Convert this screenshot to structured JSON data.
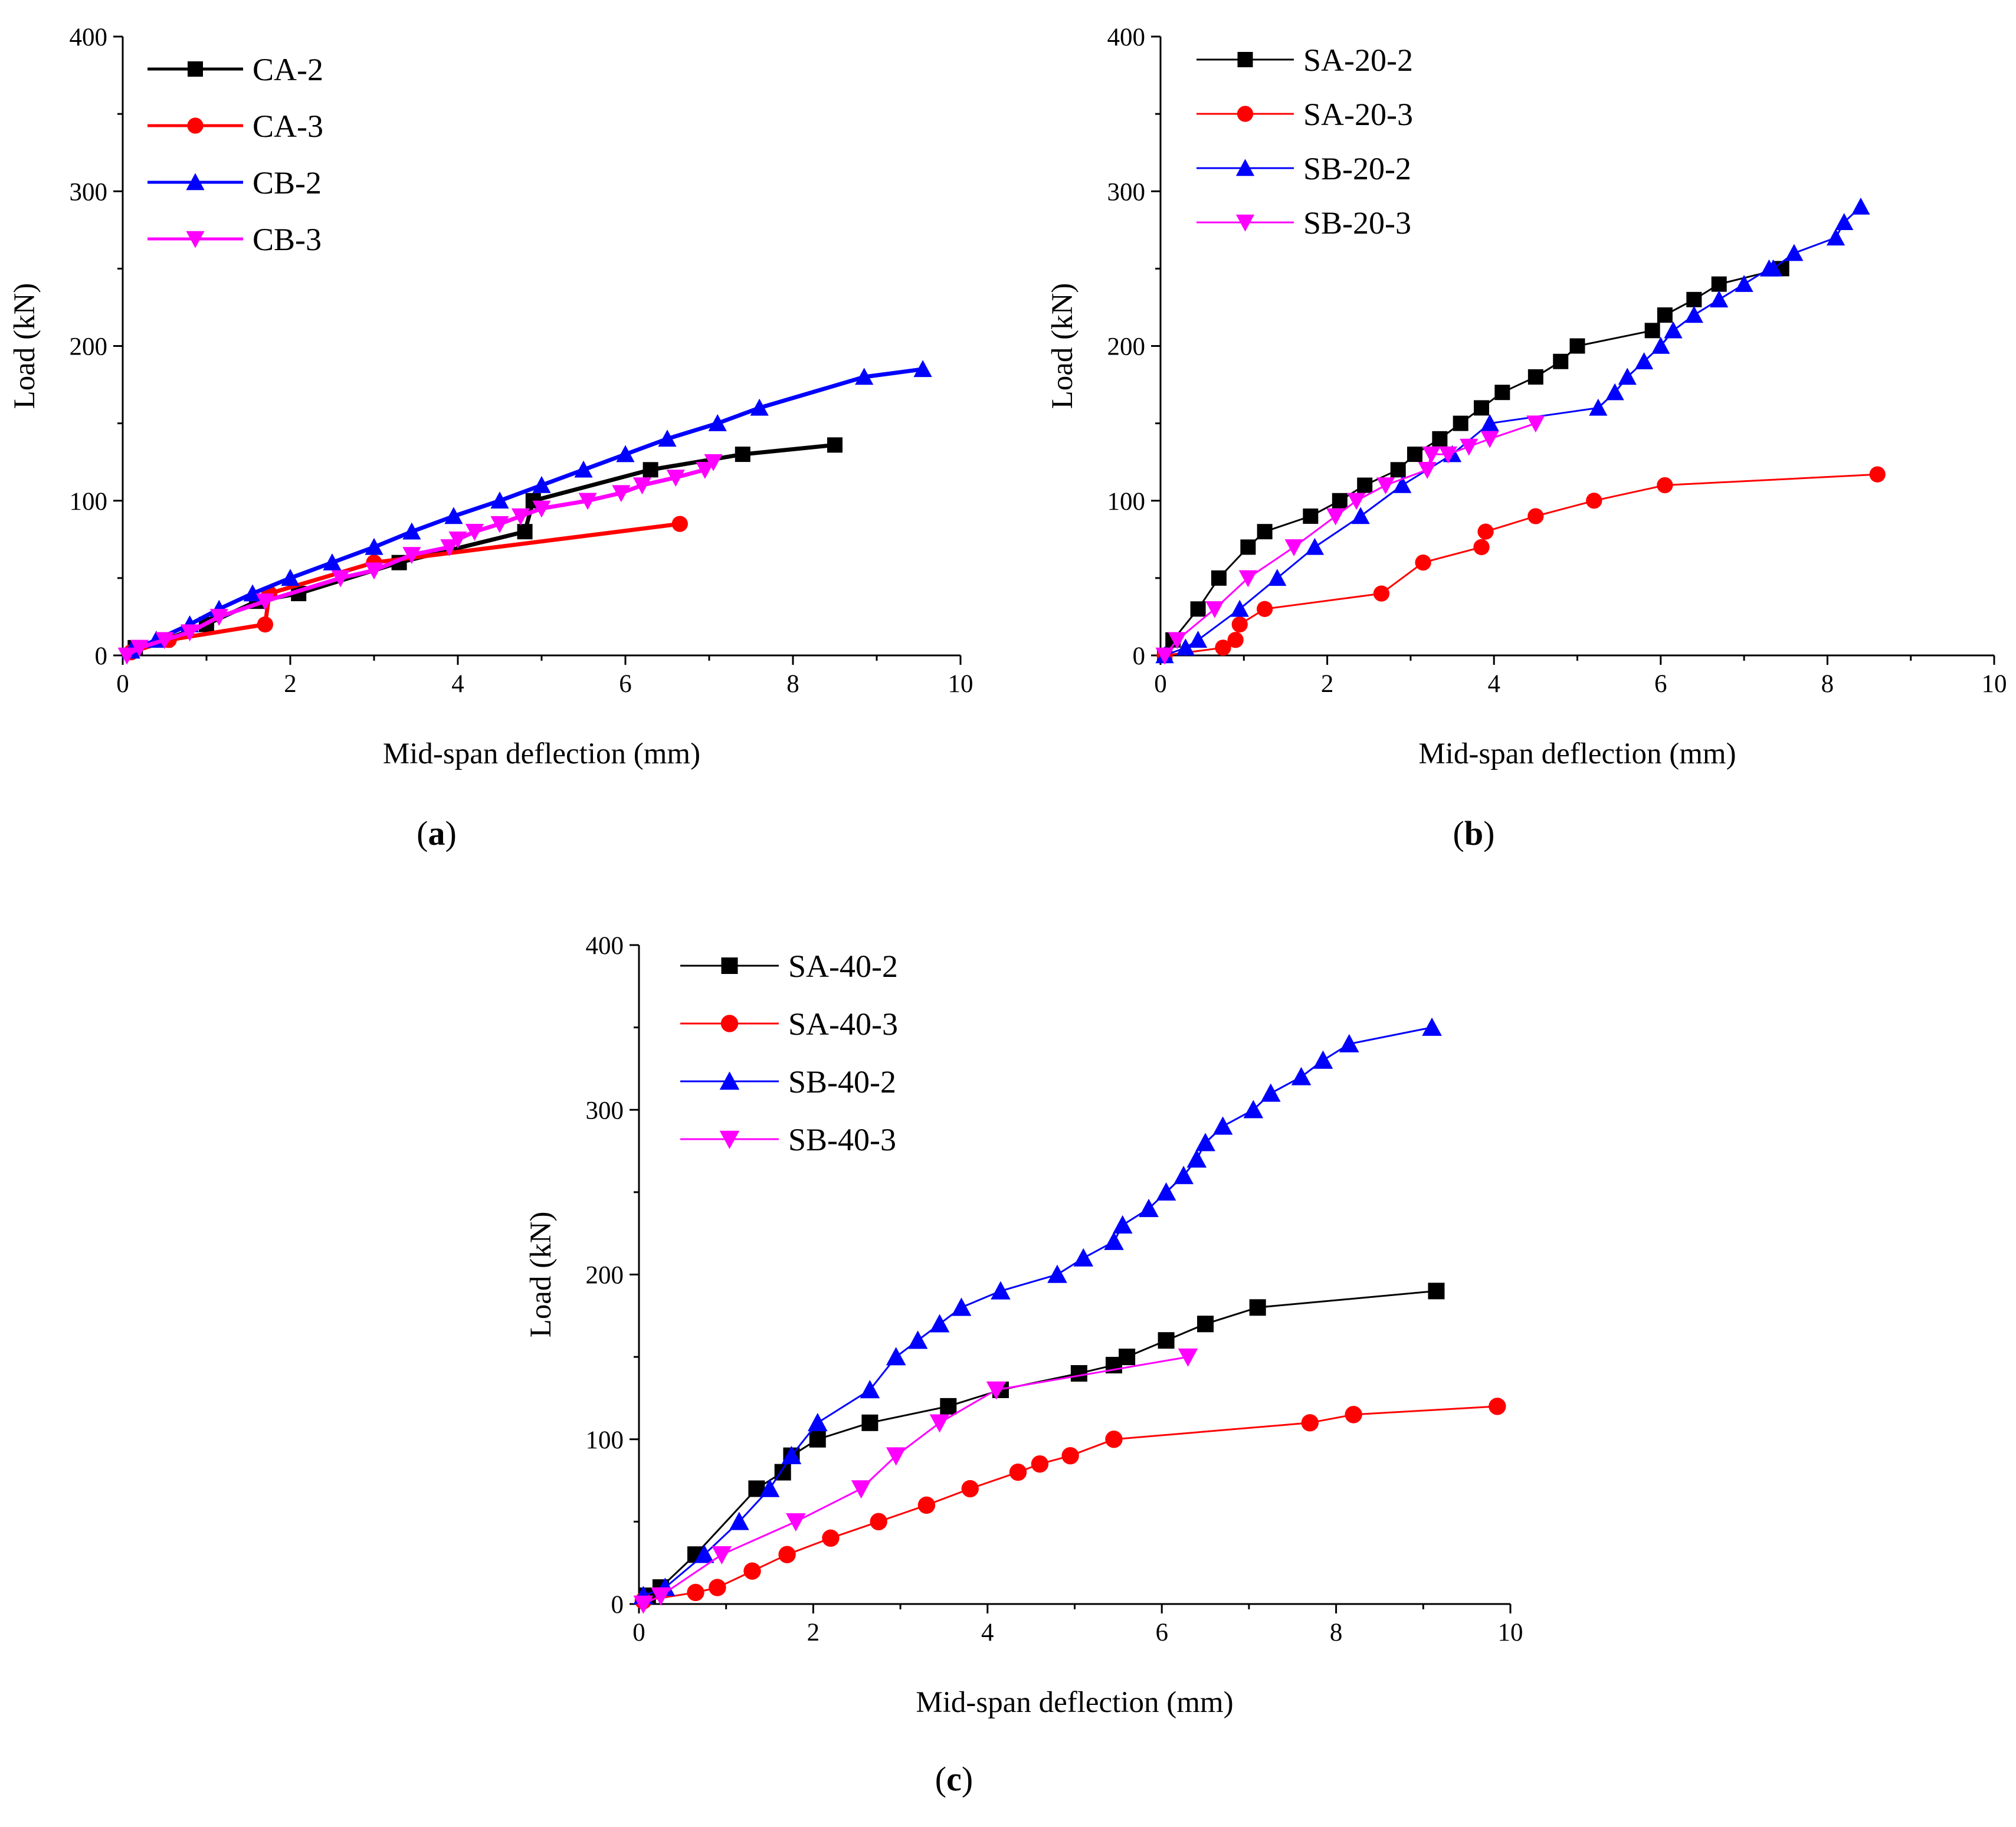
{
  "chart_data": [
    {
      "type": "line",
      "panel_label": "(a)",
      "xlabel": "Mid-span deflection (mm)",
      "ylabel": "Load (kN)",
      "xlim": [
        0,
        10
      ],
      "ylim": [
        0,
        400
      ],
      "xticks": [
        0,
        2,
        4,
        6,
        8,
        10
      ],
      "yticks": [
        0,
        100,
        200,
        300,
        400
      ],
      "legend_position": "top-left",
      "series": [
        {
          "name": "CA-2",
          "color": "#000000",
          "marker": "square",
          "x": [
            0.15,
            0.5,
            1.0,
            1.6,
            2.1,
            3.3,
            4.8,
            4.9,
            6.3,
            7.4,
            8.5
          ],
          "y": [
            5,
            10,
            20,
            35,
            40,
            60,
            80,
            100,
            120,
            130,
            136
          ]
        },
        {
          "name": "CA-3",
          "color": "#ff0000",
          "marker": "circle",
          "x": [
            0.1,
            0.55,
            1.7,
            1.75,
            3.0,
            6.65
          ],
          "y": [
            2,
            10,
            20,
            40,
            60,
            85
          ]
        },
        {
          "name": "CB-2",
          "color": "#0000ff",
          "marker": "triangle-up",
          "x": [
            0.1,
            0.4,
            0.8,
            1.15,
            1.55,
            2.0,
            2.5,
            3.0,
            3.45,
            3.95,
            4.5,
            5.0,
            5.5,
            6.0,
            6.5,
            7.1,
            7.6,
            8.85,
            9.55
          ],
          "y": [
            3,
            10,
            20,
            30,
            40,
            50,
            60,
            70,
            80,
            90,
            100,
            110,
            120,
            130,
            140,
            150,
            160,
            180,
            185
          ]
        },
        {
          "name": "CB-3",
          "color": "#ff00ff",
          "marker": "triangle-down",
          "x": [
            0.05,
            0.2,
            0.5,
            0.8,
            1.15,
            1.7,
            2.6,
            3.0,
            3.45,
            3.9,
            4.0,
            4.2,
            4.5,
            4.75,
            5.0,
            5.55,
            5.95,
            6.2,
            6.6,
            6.95,
            7.05
          ],
          "y": [
            0,
            5,
            10,
            15,
            25,
            35,
            50,
            55,
            65,
            70,
            75,
            80,
            85,
            90,
            95,
            100,
            105,
            110,
            115,
            120,
            125
          ]
        }
      ]
    },
    {
      "type": "line",
      "panel_label": "(b)",
      "xlabel": "Mid-span deflection (mm)",
      "ylabel": "Load (kN)",
      "xlim": [
        0,
        10
      ],
      "ylim": [
        0,
        400
      ],
      "xticks": [
        0,
        2,
        4,
        6,
        8,
        10
      ],
      "yticks": [
        0,
        100,
        200,
        300,
        400
      ],
      "legend_position": "top-left",
      "series": [
        {
          "name": "SA-20-2",
          "color": "#000000",
          "marker": "square",
          "x": [
            0.05,
            0.15,
            0.45,
            0.7,
            1.05,
            1.25,
            1.8,
            2.15,
            2.45,
            2.85,
            3.05,
            3.35,
            3.6,
            3.85,
            4.1,
            4.5,
            4.8,
            5.0,
            5.9,
            6.05,
            6.4,
            6.7,
            7.45
          ],
          "y": [
            0,
            10,
            30,
            50,
            70,
            80,
            90,
            100,
            110,
            120,
            130,
            140,
            150,
            160,
            170,
            180,
            190,
            200,
            210,
            220,
            230,
            240,
            250
          ]
        },
        {
          "name": "SA-20-3",
          "color": "#ff0000",
          "marker": "circle",
          "x": [
            0.05,
            0.75,
            0.9,
            0.95,
            1.25,
            2.65,
            3.15,
            3.85,
            3.9,
            4.5,
            5.2,
            6.05,
            8.6
          ],
          "y": [
            0,
            5,
            10,
            20,
            30,
            40,
            60,
            70,
            80,
            90,
            100,
            110,
            117
          ]
        },
        {
          "name": "SB-20-2",
          "color": "#0000ff",
          "marker": "triangle-up",
          "x": [
            0.05,
            0.3,
            0.45,
            0.95,
            1.4,
            1.85,
            2.4,
            2.9,
            3.5,
            3.95,
            5.25,
            5.45,
            5.6,
            5.8,
            6.0,
            6.15,
            6.4,
            6.7,
            7.0,
            7.3,
            7.35,
            7.6,
            8.1,
            8.2,
            8.4
          ],
          "y": [
            0,
            5,
            10,
            30,
            50,
            70,
            90,
            110,
            130,
            150,
            160,
            170,
            180,
            190,
            200,
            210,
            220,
            230,
            240,
            250,
            250,
            260,
            270,
            280,
            290
          ]
        },
        {
          "name": "SB-20-3",
          "color": "#ff00ff",
          "marker": "triangle-down",
          "x": [
            0.05,
            0.2,
            0.65,
            1.05,
            1.6,
            2.1,
            2.35,
            2.7,
            3.2,
            3.25,
            3.45,
            3.7,
            3.95,
            4.5
          ],
          "y": [
            0,
            10,
            30,
            50,
            70,
            90,
            100,
            110,
            120,
            130,
            130,
            135,
            140,
            150
          ]
        }
      ]
    },
    {
      "type": "line",
      "panel_label": "(c)",
      "xlabel": "Mid-span deflection (mm)",
      "ylabel": "Load (kN)",
      "xlim": [
        0,
        10
      ],
      "ylim": [
        0,
        400
      ],
      "xticks": [
        0,
        2,
        4,
        6,
        8,
        10
      ],
      "yticks": [
        0,
        100,
        200,
        300,
        400
      ],
      "legend_position": "top-left",
      "series": [
        {
          "name": "SA-40-2",
          "color": "#000000",
          "marker": "square",
          "x": [
            0.1,
            0.25,
            0.65,
            1.35,
            1.65,
            1.75,
            2.05,
            2.65,
            3.55,
            4.15,
            5.05,
            5.45,
            5.6,
            6.05,
            6.5,
            7.1,
            9.15
          ],
          "y": [
            5,
            10,
            30,
            70,
            80,
            90,
            100,
            110,
            120,
            130,
            140,
            145,
            150,
            160,
            170,
            180,
            190
          ]
        },
        {
          "name": "SA-40-3",
          "color": "#ff0000",
          "marker": "circle",
          "x": [
            0.05,
            0.65,
            0.9,
            1.3,
            1.7,
            2.2,
            2.75,
            3.3,
            3.8,
            4.35,
            4.6,
            4.95,
            5.45,
            7.7,
            8.2,
            9.85
          ],
          "y": [
            2,
            7,
            10,
            20,
            30,
            40,
            50,
            60,
            70,
            80,
            85,
            90,
            100,
            110,
            115,
            120
          ]
        },
        {
          "name": "SB-40-2",
          "color": "#0000ff",
          "marker": "triangle-up",
          "x": [
            0.05,
            0.3,
            0.75,
            1.15,
            1.5,
            1.75,
            2.05,
            2.65,
            2.95,
            3.2,
            3.45,
            3.7,
            4.15,
            4.8,
            5.1,
            5.45,
            5.55,
            5.85,
            6.05,
            6.25,
            6.4,
            6.5,
            6.7,
            7.05,
            7.25,
            7.6,
            7.85,
            8.15,
            9.1
          ],
          "y": [
            5,
            10,
            30,
            50,
            70,
            90,
            110,
            130,
            150,
            160,
            170,
            180,
            190,
            200,
            210,
            220,
            230,
            240,
            250,
            260,
            270,
            280,
            290,
            300,
            310,
            320,
            330,
            340,
            350
          ]
        },
        {
          "name": "SB-40-3",
          "color": "#ff00ff",
          "marker": "triangle-down",
          "x": [
            0.05,
            0.25,
            0.95,
            1.8,
            2.55,
            2.95,
            3.45,
            4.1,
            6.3
          ],
          "y": [
            0,
            5,
            30,
            50,
            70,
            90,
            110,
            130,
            150
          ]
        }
      ]
    }
  ]
}
